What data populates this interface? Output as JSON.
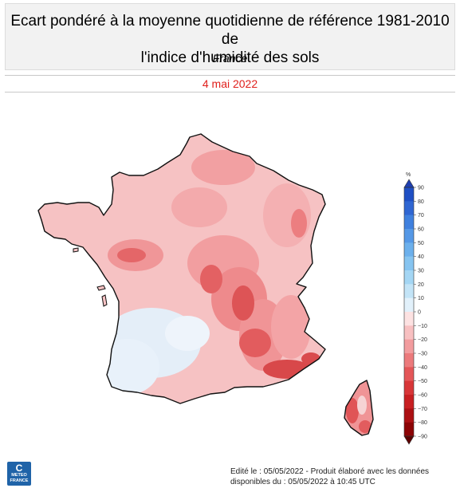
{
  "header": {
    "title_line1": "Ecart pondéré à la moyenne quotidienne de référence 1981-2010 de",
    "title_line2": "l'indice d'humidité des sols",
    "subtitle": "France"
  },
  "date": "4 mai 2022",
  "legend": {
    "unit": "%",
    "ticks": [
      "90",
      "80",
      "70",
      "60",
      "50",
      "40",
      "30",
      "20",
      "10",
      "0",
      "−10",
      "−20",
      "−30",
      "−40",
      "−50",
      "−60",
      "−70",
      "−80",
      "−90"
    ]
  },
  "logo": {
    "glyph": "C",
    "line1": "METEO",
    "line2": "FRANCE"
  },
  "footer": {
    "line1": "Edité le : 05/05/2022 - Produit élaboré avec les données",
    "line2": "disponibles du : 05/05/2022 à 10:45 UTC"
  },
  "colors": {
    "date": "#e0201c",
    "scale_blue_dark": "#1f3fb0",
    "scale_red_dark": "#8b0000",
    "dry_region": "#f4a9ab",
    "humid_region": "#dcecf8"
  }
}
